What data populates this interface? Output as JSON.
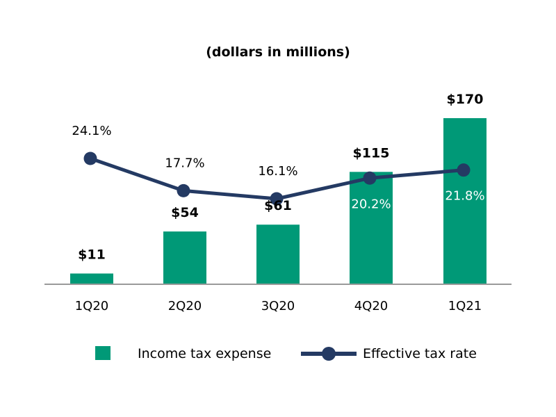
{
  "colors": {
    "bar": "#009977",
    "line": "#243a63",
    "axis": "#9a9a9a",
    "text_dark": "#000000",
    "text_light": "#ffffff"
  },
  "chart_data": {
    "type": "bar",
    "subtitle": "(dollars in millions)",
    "categories": [
      "1Q20",
      "2Q20",
      "3Q20",
      "4Q20",
      "1Q21"
    ],
    "ylim": [
      0,
      170
    ],
    "series": [
      {
        "name": "Income tax expense",
        "type": "bar",
        "values": [
          11,
          54,
          61,
          115,
          170
        ],
        "labels": [
          "$11",
          "$54",
          "$61",
          "$115",
          "$170"
        ]
      },
      {
        "name": "Effective tax rate",
        "type": "line",
        "values": [
          24.1,
          17.7,
          16.1,
          20.2,
          21.8
        ],
        "labels": [
          "24.1%",
          "17.7%",
          "16.1%",
          "20.2%",
          "21.8%"
        ]
      }
    ],
    "legend_position": "bottom"
  }
}
